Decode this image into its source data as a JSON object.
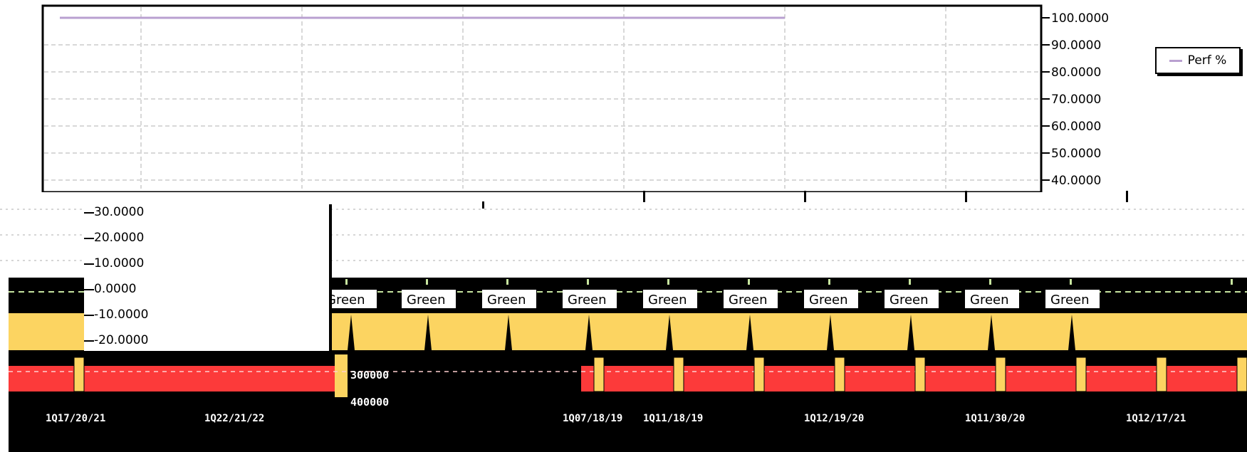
{
  "colors": {
    "perf_line": "#b9a0d0",
    "plot_border": "#000000",
    "grid": "#d8d8d8",
    "dark_band": "#000000",
    "yellow_band": "#fcd461",
    "red_band": "#fc3a3a",
    "dashed_green": "#c8e6a0",
    "badge_bg": "#ffffff"
  },
  "legend": {
    "label": "Perf %"
  },
  "right_axis": {
    "labels": [
      "100.0000",
      "90.0000",
      "80.0000",
      "70.0000",
      "60.0000",
      "50.0000",
      "40.0000"
    ]
  },
  "overlay_axis": {
    "labels": [
      "30.0000",
      "20.0000",
      "10.0000",
      "0.0000",
      "-10.0000",
      "-20.0000"
    ]
  },
  "scale_labels": [
    "300000",
    "400000"
  ],
  "badges": [
    "Green",
    "Green",
    "Green",
    "Green",
    "Green",
    "Green",
    "Green",
    "Green",
    "Green",
    "Green"
  ],
  "date_labels": [
    "1Q17/20/21",
    "1Q22/21/22",
    "1Q07/18/19",
    "1Q11/18/19",
    "1Q12/19/20",
    "1Q11/30/20",
    "1Q12/17/21"
  ],
  "chart_data": [
    {
      "type": "line",
      "series": [
        {
          "name": "Perf %",
          "x": [
            0,
            1,
            2,
            3,
            4,
            5
          ],
          "values": [
            100,
            100,
            100,
            100,
            100,
            100
          ]
        }
      ],
      "ylim": [
        40,
        100
      ],
      "ytick_labels": [
        "100.0000",
        "90.0000",
        "80.0000",
        "70.0000",
        "60.0000",
        "50.0000",
        "40.0000"
      ],
      "grid": true,
      "legend": "right"
    }
  ]
}
